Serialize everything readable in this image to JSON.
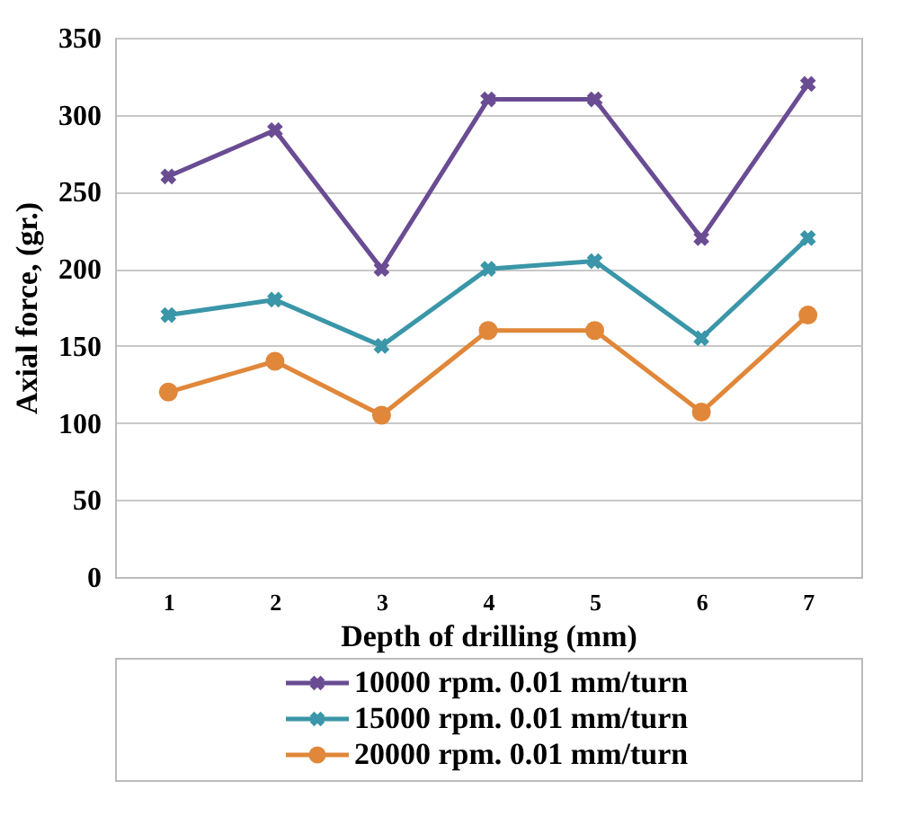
{
  "chart_data": {
    "type": "line",
    "xlabel": "Depth of drilling (mm)",
    "ylabel": "Axial force, (gr.)",
    "categories": [
      "1",
      "2",
      "3",
      "4",
      "5",
      "6",
      "7"
    ],
    "ylim": [
      0,
      350
    ],
    "yticks": [
      0,
      50,
      100,
      150,
      200,
      250,
      300,
      350
    ],
    "grid": "y",
    "legend": "bottom",
    "series": [
      {
        "name": "10000 rpm. 0.01 mm/turn",
        "color": "#6a4c93",
        "marker": "cross",
        "values": [
          260,
          290,
          200,
          310,
          310,
          220,
          320
        ]
      },
      {
        "name": "15000 rpm. 0.01 mm/turn",
        "color": "#3a96a8",
        "marker": "cross",
        "values": [
          170,
          180,
          150,
          200,
          205,
          155,
          220
        ]
      },
      {
        "name": "20000 rpm. 0.01 mm/turn",
        "color": "#e0873a",
        "marker": "circle",
        "values": [
          120,
          140,
          105,
          160,
          160,
          107,
          170
        ]
      }
    ]
  }
}
